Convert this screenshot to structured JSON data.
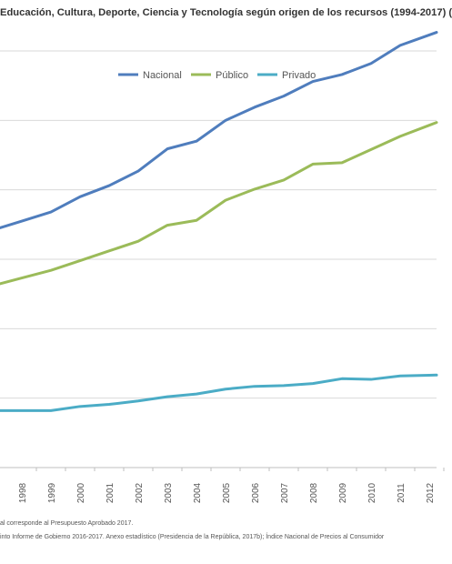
{
  "title": "Educación,  Cultura, Deporte, Ciencia  y Tecnología  según origen de los recursos (1994-2017) (",
  "chart_data": {
    "type": "line",
    "title": "Educación,  Cultura, Deporte, Ciencia  y Tecnología  según origen de los recursos (1994-2017) (",
    "categories": [
      "1998",
      "1999",
      "2000",
      "2001",
      "2002",
      "2003",
      "2004",
      "2005",
      "2006",
      "2007",
      "2008",
      "2009",
      "2010",
      "2011",
      "2012"
    ],
    "series": [
      {
        "name": "Nacional",
        "color": "#4f7dbd",
        "values": [
          3.55,
          3.68,
          3.9,
          4.06,
          4.27,
          4.59,
          4.7,
          5.0,
          5.19,
          5.35,
          5.56,
          5.66,
          5.82,
          6.08,
          6.23
        ]
      },
      {
        "name": "Público",
        "color": "#9bbb59",
        "values": [
          2.73,
          2.84,
          2.98,
          3.12,
          3.26,
          3.49,
          3.56,
          3.85,
          4.01,
          4.14,
          4.37,
          4.39,
          4.58,
          4.77,
          4.93
        ]
      },
      {
        "name": "Privado",
        "color": "#4bacc6",
        "values": [
          0.82,
          0.82,
          0.88,
          0.91,
          0.96,
          1.02,
          1.06,
          1.13,
          1.17,
          1.18,
          1.21,
          1.28,
          1.27,
          1.32,
          1.33
        ]
      }
    ],
    "legend_position": "top",
    "grid": true
  },
  "legend": {
    "items": [
      {
        "label": "Nacional",
        "color": "#4f7dbd"
      },
      {
        "label": "Público",
        "color": "#9bbb59"
      },
      {
        "label": "Privado",
        "color": "#4bacc6"
      }
    ]
  },
  "footnotes": {
    "line1": "al  corresponde al Presupuesto Aprobado 2017.",
    "line2": "into Informe de Gobierno 2016-2017. Anexo estadístico (Presidencia de la República, 2017b); Índice Nacional de Precios al Consumidor"
  }
}
